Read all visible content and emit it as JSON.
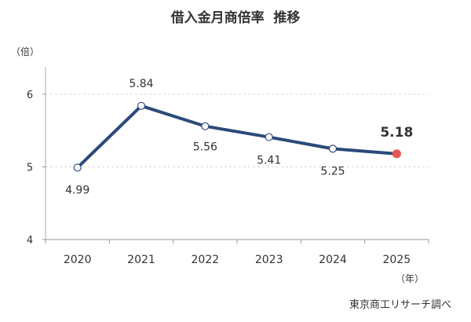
{
  "chart_data": {
    "type": "line",
    "title": "借入金月商倍率  推移",
    "ylabel": "（倍）",
    "xlabel": "（年）",
    "categories": [
      "2020",
      "2021",
      "2022",
      "2023",
      "2024",
      "2025"
    ],
    "values": [
      4.99,
      5.84,
      5.56,
      5.41,
      5.25,
      5.18
    ],
    "data_labels": [
      "4.99",
      "5.84",
      "5.56",
      "5.41",
      "5.25",
      "5.18"
    ],
    "ylim": [
      4,
      6.8
    ],
    "yticks": [
      "4",
      "5",
      "6"
    ],
    "grid": "dashed horizontal at 5 and 6",
    "legend": "none",
    "line_color": "#2b4a7a",
    "highlight_color": "#e95656",
    "source": "東京商工リサーチ調べ"
  }
}
